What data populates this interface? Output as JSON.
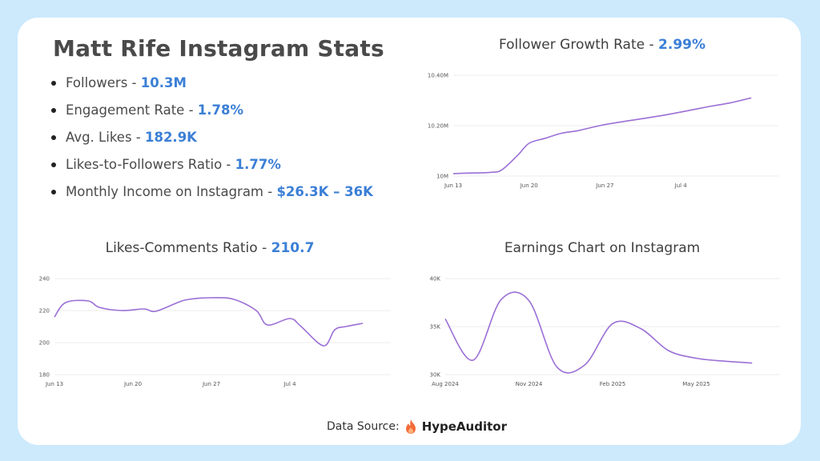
{
  "title": "Matt Rife Instagram Stats",
  "stats": [
    {
      "label": "Followers - ",
      "value": "10.3M"
    },
    {
      "label": "Engagement Rate - ",
      "value": "1.78%"
    },
    {
      "label": "Avg. Likes - ",
      "value": "182.9K"
    },
    {
      "label": "Likes-to-Followers Ratio - ",
      "value": "1.77%"
    },
    {
      "label": "Monthly Income on Instagram - ",
      "value": "$26.3K – 36K"
    }
  ],
  "colors": {
    "accent": "#3b7fd6",
    "line": "#9b6fd6",
    "background": "#cdeafc"
  },
  "footer": {
    "label": "Data Source:",
    "brand": "HypeAuditor",
    "icon": "flame-icon"
  },
  "chart_data": [
    {
      "type": "line",
      "title": "Follower Growth Rate - ",
      "title_value": "2.99%",
      "yticks": [
        {
          "v": 10.0,
          "label": "10M"
        },
        {
          "v": 10.2,
          "label": "10.20M"
        },
        {
          "v": 10.4,
          "label": "10.40M"
        }
      ],
      "ylim": [
        10.0,
        10.4
      ],
      "xlim": [
        0,
        30
      ],
      "xticks": [
        {
          "v": 0,
          "label": "Jun 13"
        },
        {
          "v": 7,
          "label": "Jun 20"
        },
        {
          "v": 14,
          "label": "Jun 27"
        },
        {
          "v": 21,
          "label": "Jul 4"
        }
      ],
      "x": [
        0,
        1.5,
        3.5,
        4.5,
        6,
        7,
        8.5,
        10,
        11.5,
        13.5,
        15.5,
        17.5,
        19.5,
        21.5,
        23.5,
        25.5,
        27.5
      ],
      "y": [
        10.01,
        10.012,
        10.015,
        10.025,
        10.085,
        10.13,
        10.15,
        10.17,
        10.18,
        10.2,
        10.215,
        10.228,
        10.242,
        10.258,
        10.275,
        10.29,
        10.31
      ]
    },
    {
      "type": "line",
      "title": "Likes-Comments Ratio - ",
      "title_value": "210.7",
      "yticks": [
        {
          "v": 180,
          "label": "180"
        },
        {
          "v": 200,
          "label": "200"
        },
        {
          "v": 220,
          "label": "220"
        },
        {
          "v": 240,
          "label": "240"
        }
      ],
      "ylim": [
        180,
        240
      ],
      "xlim": [
        0,
        30
      ],
      "xticks": [
        {
          "v": 0,
          "label": "Jun 13"
        },
        {
          "v": 7,
          "label": "Jun 20"
        },
        {
          "v": 14,
          "label": "Jun 27"
        },
        {
          "v": 21,
          "label": "Jul 4"
        }
      ],
      "x": [
        0,
        1,
        3,
        4,
        6,
        8,
        9,
        11,
        12,
        14,
        16,
        18,
        19,
        21,
        22,
        24,
        25,
        26,
        27.5
      ],
      "y": [
        216,
        225,
        226,
        222,
        220,
        221,
        219.5,
        225,
        227,
        228,
        227,
        220,
        211,
        215,
        210,
        198,
        208,
        210,
        212
      ]
    },
    {
      "type": "line",
      "title": "Earnings Chart on Instagram",
      "title_value": "",
      "yticks": [
        {
          "v": 30000,
          "label": "30K"
        },
        {
          "v": 35000,
          "label": "35K"
        },
        {
          "v": 40000,
          "label": "40K"
        }
      ],
      "ylim": [
        30000,
        40000
      ],
      "xlim": [
        0,
        12
      ],
      "xticks": [
        {
          "v": 0,
          "label": "Aug 2024"
        },
        {
          "v": 3,
          "label": "Nov 2024"
        },
        {
          "v": 6,
          "label": "Feb 2025"
        },
        {
          "v": 9,
          "label": "May 2025"
        }
      ],
      "x": [
        0,
        1,
        2,
        3,
        4,
        5,
        6,
        7,
        8,
        9,
        10,
        11
      ],
      "y": [
        35800,
        31500,
        37800,
        37700,
        30800,
        31000,
        35300,
        34800,
        32500,
        31700,
        31400,
        31200
      ]
    }
  ]
}
